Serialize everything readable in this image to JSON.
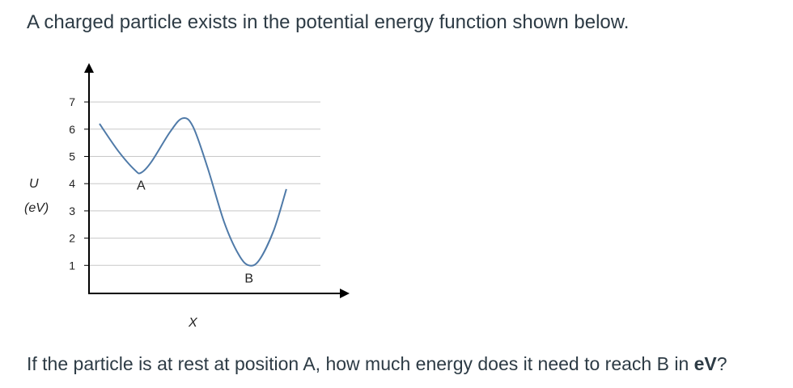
{
  "intro_text": "A charged particle exists in the potential energy function shown below.",
  "question": {
    "text_before": "If the particle is at rest at position A, how much energy does it need to reach B in ",
    "unit_bold": "eV",
    "text_after": "?"
  },
  "chart_data": {
    "type": "line",
    "xlabel": "X",
    "ylabel": "U",
    "ylabel_unit": "(eV)",
    "ylim": [
      0,
      7.7
    ],
    "yticks": [
      "1",
      "2",
      "3",
      "4",
      "5",
      "6",
      "7"
    ],
    "grid": "horizontal",
    "series": [
      {
        "points": [
          [
            0.0,
            6.2
          ],
          [
            0.45,
            5.2
          ],
          [
            0.85,
            4.5
          ],
          [
            1.0,
            4.4
          ],
          [
            1.25,
            4.8
          ],
          [
            1.7,
            5.9
          ],
          [
            2.0,
            6.4
          ],
          [
            2.25,
            6.1
          ],
          [
            2.6,
            4.6
          ],
          [
            3.0,
            2.6
          ],
          [
            3.35,
            1.4
          ],
          [
            3.6,
            1.0
          ],
          [
            3.85,
            1.2
          ],
          [
            4.2,
            2.3
          ],
          [
            4.5,
            3.8
          ]
        ]
      }
    ],
    "point_labels": [
      {
        "label": "A",
        "x": 1.0,
        "y": 4.4
      },
      {
        "label": "B",
        "x": 3.6,
        "y": 1.0
      }
    ]
  }
}
